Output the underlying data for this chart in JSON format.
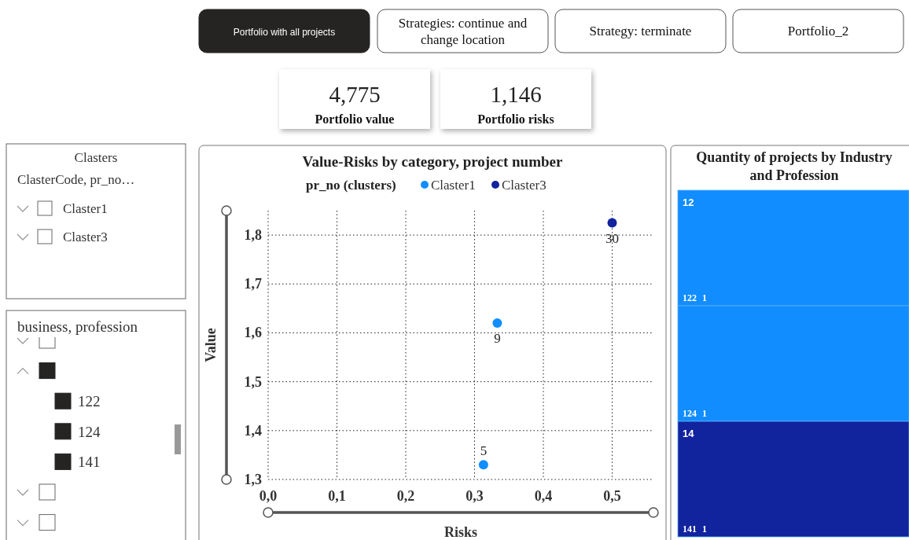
{
  "chart_data": [
    {
      "type": "other",
      "annotations": [
        "Portfolio with all projects",
        "Strategies: continue and change location",
        "Strategy: terminate",
        "Portfolio_2"
      ]
    },
    {
      "type": "other",
      "categories": [
        "Portfolio value",
        "Portfolio risks"
      ],
      "annotations": [
        "4,775",
        "1,146"
      ]
    },
    {
      "type": "other",
      "title": "Clasters",
      "subtitle": "ClasterCode, pr_no…",
      "categories": [
        "Claster1",
        "Claster3"
      ]
    },
    {
      "type": "other",
      "title": "business, profession",
      "categories": [
        null,
        null,
        "122",
        "124",
        "141",
        null,
        null
      ]
    },
    {
      "type": "scatter",
      "title": "Value-Risks by category, project number",
      "xlabel": "Risks",
      "ylabel": "Value",
      "legend_title": "pr_no (clusters)",
      "legend": "top",
      "grid": true,
      "marker": "circle",
      "xlim": [
        0,
        0.56
      ],
      "xticks": [
        {
          "value": 0,
          "label": "0,0"
        },
        {
          "value": 0.1,
          "label": "0,1"
        },
        {
          "value": 0.2,
          "label": "0,2"
        },
        {
          "value": 0.3,
          "label": "0,3"
        },
        {
          "value": 0.4,
          "label": "0,4"
        },
        {
          "value": 0.5,
          "label": "0,5"
        }
      ],
      "ylim": [
        1.3,
        1.85
      ],
      "yticks": [
        {
          "value": 1.3,
          "label": "1,3"
        },
        {
          "value": 1.4,
          "label": "1,4"
        },
        {
          "value": 1.5,
          "label": "1,5"
        },
        {
          "value": 1.6,
          "label": "1,6"
        },
        {
          "value": 1.7,
          "label": "1,7"
        },
        {
          "value": 1.8,
          "label": "1,8"
        }
      ],
      "series": [
        {
          "name": "Claster1",
          "color": "#118dff",
          "x": [
            0.313,
            0.333
          ],
          "values": [
            1.33,
            1.62
          ]
        },
        {
          "name": "Claster3",
          "color": "#12239e",
          "x": [
            0.5
          ],
          "values": [
            1.825
          ]
        }
      ],
      "annotations": [
        {
          "text": "5",
          "x": 0.313,
          "y": 1.33
        },
        {
          "text": "9",
          "x": 0.333,
          "y": 1.62
        },
        {
          "text": "30",
          "x": 0.5,
          "y": 1.825
        }
      ]
    },
    {
      "type": "other",
      "title": "Quantity of projects by Industry and Profession",
      "categories": [
        "122",
        "124",
        "141"
      ],
      "values": [
        1,
        1,
        1
      ],
      "colors": [
        "#118dff",
        "#118dff",
        "#12239e"
      ],
      "data_labels": true,
      "annotations": [
        "12",
        "14"
      ]
    }
  ]
}
